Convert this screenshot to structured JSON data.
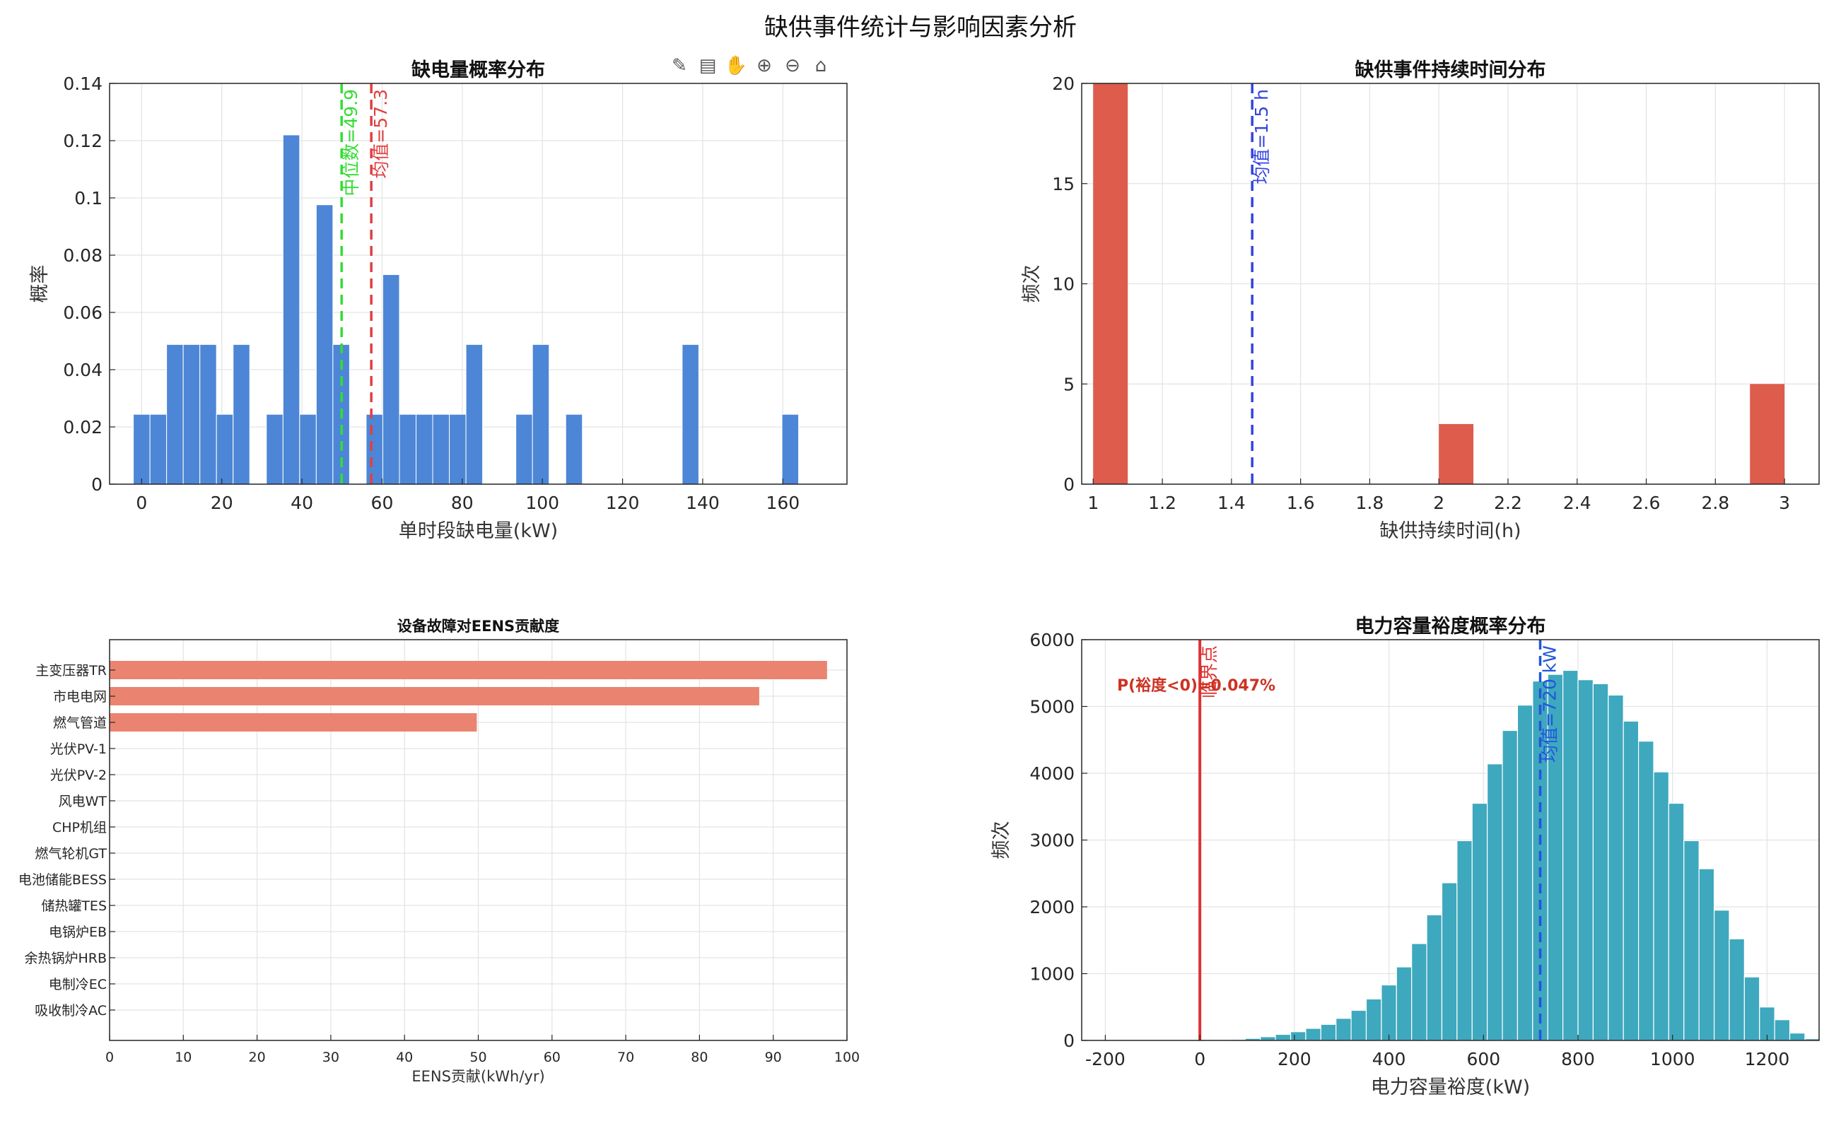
{
  "figure_title": "缺供事件统计与影响因素分析",
  "toolbar": {
    "icons": [
      "brush-icon",
      "data-tips-icon",
      "pan-hand-icon",
      "zoom-in-icon",
      "zoom-out-icon",
      "home-icon"
    ],
    "glyphs": [
      "✎",
      "▤",
      "✋",
      "⊕",
      "⊖",
      "⌂"
    ]
  },
  "chart_data": [
    {
      "type": "bar",
      "title": "缺电量概率分布",
      "xlabel": "单时段缺电量(kW)",
      "ylabel": "概率",
      "xlim": [
        -8,
        176
      ],
      "ylim": [
        0,
        0.14
      ],
      "xticks": [
        0,
        20,
        40,
        60,
        80,
        100,
        120,
        140,
        160
      ],
      "yticks": [
        0,
        0.02,
        0.04,
        0.06,
        0.08,
        0.1,
        0.12,
        0.14
      ],
      "ytick_labels": [
        "0",
        "0.02",
        "0.04",
        "0.06",
        "0.08",
        "0.1",
        "0.12",
        "0.14"
      ],
      "grid": true,
      "bar_color": "#4d86d6",
      "bin_width": 4.15,
      "x": [
        0,
        4.15,
        8.3,
        12.45,
        16.6,
        20.75,
        24.9,
        29.05,
        33.2,
        37.35,
        41.5,
        45.65,
        49.8,
        53.95,
        58.1,
        62.25,
        66.4,
        70.55,
        74.7,
        78.85,
        83,
        87.15,
        91.3,
        95.45,
        99.6,
        103.75,
        107.9,
        112.05,
        116.2,
        120.35,
        124.5,
        128.65,
        132.8,
        136.95,
        141.1,
        145.25,
        149.4,
        153.55,
        157.7,
        161.85
      ],
      "values": [
        0.0244,
        0.0244,
        0.0488,
        0.0488,
        0.0488,
        0.0244,
        0.0488,
        0,
        0.0244,
        0.122,
        0.0244,
        0.0976,
        0.0488,
        0,
        0.0244,
        0.0732,
        0.0244,
        0.0244,
        0.0244,
        0.0244,
        0.0488,
        0,
        0,
        0.0244,
        0.0488,
        0,
        0.0244,
        0,
        0,
        0,
        0,
        0,
        0,
        0.0488,
        0,
        0,
        0,
        0,
        0,
        0.0244
      ],
      "vlines": [
        {
          "x": 49.9,
          "label": "中位数=49.9",
          "color": "#33dd33"
        },
        {
          "x": 57.3,
          "label": "均值=57.3",
          "color": "#e04040"
        }
      ]
    },
    {
      "type": "bar",
      "title": "缺供事件持续时间分布",
      "xlabel": "缺供持续时间(h)",
      "ylabel": "频次",
      "xlim": [
        0.9667,
        3.1
      ],
      "ylim": [
        0,
        20
      ],
      "xticks": [
        1,
        1.2,
        1.4,
        1.6,
        1.8,
        2,
        2.2,
        2.4,
        2.6,
        2.8,
        3
      ],
      "yticks": [
        0,
        5,
        10,
        15,
        20
      ],
      "grid": true,
      "bar_color": "#dd5c4c",
      "bin_width": 0.1,
      "x": [
        1.05,
        2.05,
        2.95
      ],
      "values": [
        20,
        3,
        5
      ],
      "vlines": [
        {
          "x": 1.46,
          "label": "均值=1.5 h",
          "color": "#3344dd"
        }
      ]
    },
    {
      "type": "barh",
      "title": "设备故障对EENS贡献度",
      "xlabel": "EENS贡献(kWh/yr)",
      "xlim": [
        0,
        100
      ],
      "xticks": [
        0,
        10,
        20,
        30,
        40,
        50,
        60,
        70,
        80,
        90,
        100
      ],
      "grid": true,
      "bar_color": "#ea8470",
      "categories": [
        "主变压器TR",
        "市电电网",
        "燃气管道",
        "光伏PV-1",
        "光伏PV-2",
        "风电WT",
        "CHP机组",
        "燃气轮机GT",
        "电池储能BESS",
        "储热罐TES",
        "电锅炉EB",
        "余热锅炉HRB",
        "电制冷EC",
        "吸收制冷AC"
      ],
      "values": [
        97.3,
        88.1,
        49.8,
        0,
        0,
        0,
        0,
        0,
        0,
        0,
        0,
        0,
        0,
        0
      ]
    },
    {
      "type": "bar",
      "title": "电力容量裕度概率分布",
      "xlabel": "电力容量裕度(kW)",
      "ylabel": "频次",
      "xlim": [
        -250,
        1310
      ],
      "ylim": [
        0,
        6000
      ],
      "xticks": [
        -200,
        0,
        200,
        400,
        600,
        800,
        1000,
        1200
      ],
      "yticks": [
        0,
        1000,
        2000,
        3000,
        4000,
        5000,
        6000
      ],
      "grid": true,
      "bar_color": "#3ea8be",
      "bin_width": 32,
      "x_start": 80,
      "values": [
        15,
        30,
        55,
        90,
        130,
        180,
        240,
        330,
        450,
        620,
        830,
        1100,
        1450,
        1880,
        2360,
        2990,
        3550,
        4140,
        4640,
        5020,
        5380,
        5480,
        5540,
        5400,
        5340,
        5170,
        4780,
        4480,
        4020,
        3550,
        2990,
        2570,
        1950,
        1520,
        950,
        500,
        310,
        110,
        25
      ],
      "vlines": [
        {
          "x": 0,
          "label": "临界点",
          "color": "#dd3333",
          "solid": true
        },
        {
          "x": 720,
          "label": "均值=720 kW",
          "color": "#2255dd"
        }
      ],
      "annotation": "P(裕度<0)=0.047%",
      "annotation_color": "#cc3322"
    }
  ]
}
